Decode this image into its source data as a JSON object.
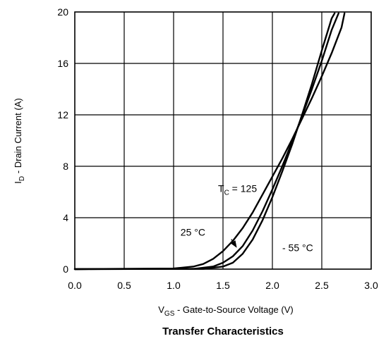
{
  "chart_data": {
    "type": "line",
    "title": "Transfer Characteristics",
    "xlabel": {
      "main": "V",
      "sub": "GS",
      "rest": " - Gate-to-Source Voltage (V)"
    },
    "ylabel": {
      "main": "I",
      "sub": "D",
      "rest": " - Drain Current (A)"
    },
    "xlim": [
      0.0,
      3.0
    ],
    "ylim": [
      0,
      20
    ],
    "xticks": [
      "0.0",
      "0.5",
      "1.0",
      "1.5",
      "2.0",
      "2.5",
      "3.0"
    ],
    "yticks": [
      "0",
      "4",
      "8",
      "12",
      "16",
      "20"
    ],
    "grid": true,
    "series": [
      {
        "name": "T_C = 125",
        "x": [
          0.0,
          1.0,
          1.2,
          1.3,
          1.4,
          1.5,
          1.6,
          1.7,
          1.8,
          1.9,
          2.0,
          2.1,
          2.2,
          2.3,
          2.4,
          2.5,
          2.6,
          2.7,
          2.73
        ],
        "y": [
          0,
          0.05,
          0.2,
          0.4,
          0.8,
          1.4,
          2.2,
          3.2,
          4.4,
          5.8,
          7.2,
          8.6,
          10.1,
          11.7,
          13.3,
          15.0,
          16.8,
          18.8,
          19.9
        ]
      },
      {
        "name": "25 °C",
        "x": [
          0.0,
          1.2,
          1.4,
          1.5,
          1.6,
          1.7,
          1.8,
          1.9,
          2.0,
          2.1,
          2.2,
          2.3,
          2.4,
          2.5,
          2.6,
          2.67
        ],
        "y": [
          0,
          0.02,
          0.2,
          0.5,
          1.0,
          1.8,
          3.0,
          4.5,
          6.2,
          8.0,
          9.9,
          11.9,
          14.0,
          16.2,
          18.6,
          19.9
        ]
      },
      {
        "name": "- 55 °C",
        "x": [
          0.0,
          1.3,
          1.5,
          1.6,
          1.7,
          1.8,
          1.9,
          2.0,
          2.1,
          2.2,
          2.3,
          2.4,
          2.5,
          2.6,
          2.63
        ],
        "y": [
          0,
          0.02,
          0.2,
          0.5,
          1.2,
          2.3,
          3.8,
          5.6,
          7.6,
          9.7,
          12.0,
          14.4,
          17.0,
          19.5,
          19.9
        ]
      }
    ],
    "annotations": [
      {
        "text_main": "T",
        "text_sub": "C",
        "text_rest": " = 125",
        "at": [
          1.45,
          6.0
        ]
      },
      {
        "text_main": "25 °C",
        "at": [
          1.07,
          2.6
        ],
        "arrow_to": [
          1.65,
          1.6
        ]
      },
      {
        "text_main": "- 55 °C",
        "at": [
          2.1,
          1.4
        ]
      }
    ]
  }
}
